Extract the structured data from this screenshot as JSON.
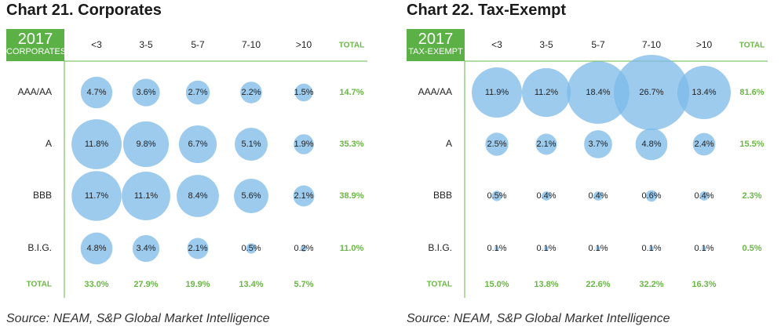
{
  "colors": {
    "green": "#6ab745",
    "badge": "#5bb046",
    "bubble": "#7cb9e8",
    "overlap": "#4a9ad8",
    "text": "#222222"
  },
  "chart_data": [
    {
      "type": "bubble-table",
      "title": "Chart 21. Corporates",
      "badge": {
        "year": "2017",
        "category": "CORPORATES"
      },
      "columns": [
        "<3",
        "3-5",
        "5-7",
        "7-10",
        ">10",
        "TOTAL"
      ],
      "rows": [
        "AAA/AA",
        "A",
        "BBB",
        "B.I.G.",
        "TOTAL"
      ],
      "values": [
        [
          4.7,
          3.6,
          2.7,
          2.2,
          1.5
        ],
        [
          11.8,
          9.8,
          6.7,
          5.1,
          1.9
        ],
        [
          11.7,
          11.1,
          8.4,
          5.6,
          2.1
        ],
        [
          4.8,
          3.4,
          2.1,
          0.5,
          0.2
        ]
      ],
      "labels": [
        [
          "4.7%",
          "3.6%",
          "2.7%",
          "2.2%",
          "1.5%"
        ],
        [
          "11.8%",
          "9.8%",
          "6.7%",
          "5.1%",
          "1.9%"
        ],
        [
          "11.7%",
          "11.1%",
          "8.4%",
          "5.6%",
          "2.1%"
        ],
        [
          "4.8%",
          "3.4%",
          "2.1%",
          "0.5%",
          "0.2%"
        ]
      ],
      "row_totals": [
        "14.7%",
        "35.3%",
        "38.9%",
        "11.0%"
      ],
      "col_totals": [
        "33.0%",
        "27.9%",
        "19.9%",
        "13.4%",
        "5.7%"
      ],
      "source": "Source: NEAM, S&P Global Market Intelligence"
    },
    {
      "type": "bubble-table",
      "title": "Chart 22. Tax-Exempt",
      "badge": {
        "year": "2017",
        "category": "TAX-EXEMPT"
      },
      "columns": [
        "<3",
        "3-5",
        "5-7",
        "7-10",
        ">10",
        "TOTAL"
      ],
      "rows": [
        "AAA/AA",
        "A",
        "BBB",
        "B.I.G.",
        "TOTAL"
      ],
      "values": [
        [
          11.9,
          11.2,
          18.4,
          26.7,
          13.4
        ],
        [
          2.5,
          2.1,
          3.7,
          4.8,
          2.4
        ],
        [
          0.5,
          0.4,
          0.4,
          0.6,
          0.4
        ],
        [
          0.1,
          0.1,
          0.1,
          0.1,
          0.1
        ]
      ],
      "labels": [
        [
          "11.9%",
          "11.2%",
          "18.4%",
          "26.7%",
          "13.4%"
        ],
        [
          "2.5%",
          "2.1%",
          "3.7%",
          "4.8%",
          "2.4%"
        ],
        [
          "0.5%",
          "0.4%",
          "0.4%",
          "0.6%",
          "0.4%"
        ],
        [
          "0.1%",
          "0.1%",
          "0.1%",
          "0.1%",
          "0.1%"
        ]
      ],
      "row_totals": [
        "81.6%",
        "15.5%",
        "2.3%",
        "0.5%"
      ],
      "col_totals": [
        "15.0%",
        "13.8%",
        "22.6%",
        "32.2%",
        "16.3%"
      ],
      "source": "Source: NEAM, S&P Global Market Intelligence"
    }
  ]
}
